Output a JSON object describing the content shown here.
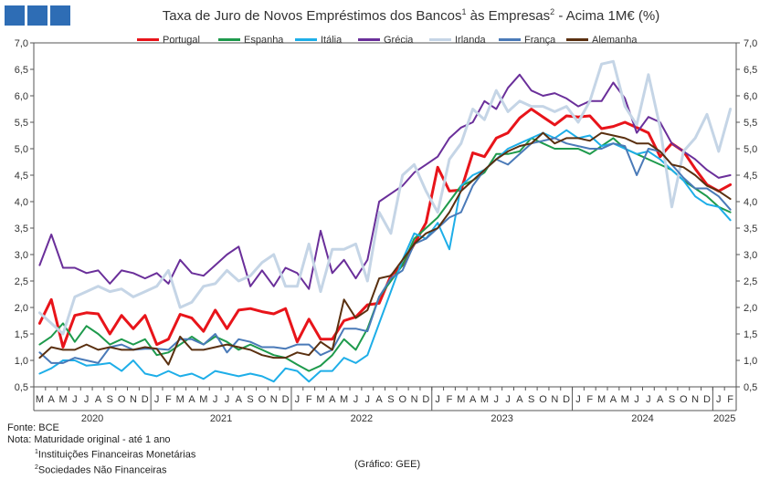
{
  "header": {
    "logo_squares": 3
  },
  "chart_data": {
    "type": "line",
    "title_main": "Taxa de Juro de Novos Empréstimos dos Bancos",
    "title_sup1": "1",
    "title_mid": " às Empresas",
    "title_sup2": "2",
    "title_tail": " - Acima 1M€ (%)",
    "ylim": [
      0.5,
      7.0
    ],
    "yticks": [
      "0,5",
      "1,0",
      "1,5",
      "2,0",
      "2,5",
      "3,0",
      "3,5",
      "4,0",
      "4,5",
      "5,0",
      "5,5",
      "6,0",
      "6,5",
      "7,0"
    ],
    "grid": "none",
    "legend_position": "top",
    "month_labels": [
      "M",
      "A",
      "M",
      "J",
      "J",
      "A",
      "S",
      "O",
      "N",
      "D",
      "J",
      "F",
      "M",
      "A",
      "M",
      "J",
      "J",
      "A",
      "S",
      "O",
      "N",
      "D",
      "J",
      "F",
      "M",
      "A",
      "M",
      "J",
      "J",
      "A",
      "S",
      "O",
      "N",
      "D",
      "J",
      "F",
      "M",
      "A",
      "M",
      "J",
      "J",
      "A",
      "S",
      "O",
      "N",
      "D",
      "J",
      "F",
      "M",
      "A",
      "M",
      "J",
      "J",
      "A",
      "S",
      "O",
      "N",
      "D",
      "J",
      "F"
    ],
    "year_labels": [
      {
        "label": "2020",
        "start": 0,
        "end": 9
      },
      {
        "label": "2021",
        "start": 10,
        "end": 21
      },
      {
        "label": "2022",
        "start": 22,
        "end": 33
      },
      {
        "label": "2023",
        "start": 34,
        "end": 45
      },
      {
        "label": "2024",
        "start": 46,
        "end": 57
      },
      {
        "label": "2025",
        "start": 58,
        "end": 59
      }
    ],
    "series": [
      {
        "name": "Portugal",
        "color": "#e8141a",
        "width": 3,
        "values": [
          1.7,
          2.15,
          1.25,
          1.85,
          1.9,
          1.88,
          1.5,
          1.85,
          1.6,
          1.85,
          1.3,
          1.4,
          1.87,
          1.8,
          1.55,
          1.95,
          1.6,
          1.95,
          1.98,
          1.92,
          1.88,
          1.98,
          1.35,
          1.78,
          1.4,
          1.4,
          1.75,
          1.82,
          2.05,
          2.08,
          2.6,
          2.8,
          3.2,
          3.6,
          4.65,
          4.2,
          4.22,
          4.92,
          4.85,
          5.2,
          5.3,
          5.58,
          5.75,
          5.6,
          5.45,
          5.62,
          5.6,
          5.62,
          5.38,
          5.42,
          5.5,
          5.4,
          5.3,
          4.85,
          5.1,
          4.95,
          4.62,
          4.32,
          4.2,
          4.32
        ]
      },
      {
        "name": "Espanha",
        "color": "#1e9a4c",
        "width": 2,
        "values": [
          1.3,
          1.45,
          1.7,
          1.35,
          1.65,
          1.5,
          1.3,
          1.4,
          1.3,
          1.4,
          1.1,
          1.15,
          1.3,
          1.45,
          1.3,
          1.45,
          1.35,
          1.2,
          1.3,
          1.2,
          1.1,
          1.05,
          0.92,
          0.8,
          0.9,
          1.1,
          1.4,
          1.2,
          1.6,
          2.2,
          2.5,
          2.8,
          3.3,
          3.5,
          3.7,
          4.0,
          4.3,
          4.4,
          4.55,
          4.9,
          4.9,
          4.95,
          5.2,
          5.1,
          5.0,
          5.0,
          5.0,
          4.9,
          5.05,
          5.2,
          5.0,
          4.9,
          4.8,
          4.7,
          4.6,
          4.4,
          4.25,
          4.1,
          3.9,
          3.8
        ]
      },
      {
        "name": "Itália",
        "color": "#1eaee8",
        "width": 2,
        "values": [
          0.75,
          0.85,
          1.0,
          1.0,
          0.9,
          0.92,
          0.95,
          0.8,
          1.0,
          0.75,
          0.7,
          0.8,
          0.7,
          0.75,
          0.65,
          0.8,
          0.75,
          0.7,
          0.75,
          0.7,
          0.6,
          0.85,
          0.8,
          0.6,
          0.8,
          0.8,
          1.05,
          0.95,
          1.1,
          1.7,
          2.3,
          2.9,
          3.4,
          3.3,
          3.6,
          3.1,
          4.3,
          4.5,
          4.6,
          4.8,
          5.0,
          5.1,
          5.2,
          5.3,
          5.2,
          5.35,
          5.2,
          5.25,
          5.05,
          5.1,
          5.0,
          4.9,
          4.95,
          4.8,
          4.6,
          4.4,
          4.1,
          3.95,
          3.9,
          3.65
        ]
      },
      {
        "name": "Grécia",
        "color": "#6a2f9a",
        "width": 2,
        "values": [
          2.8,
          3.38,
          2.75,
          2.75,
          2.65,
          2.7,
          2.45,
          2.7,
          2.65,
          2.55,
          2.65,
          2.45,
          2.9,
          2.65,
          2.6,
          2.8,
          3.0,
          3.15,
          2.4,
          2.7,
          2.4,
          2.75,
          2.65,
          2.35,
          3.45,
          2.65,
          2.9,
          2.55,
          2.9,
          4.0,
          4.15,
          4.3,
          4.55,
          4.7,
          4.85,
          5.2,
          5.4,
          5.5,
          5.9,
          5.75,
          6.15,
          6.4,
          6.1,
          6.0,
          6.05,
          5.95,
          5.8,
          5.9,
          5.9,
          6.25,
          5.95,
          5.3,
          5.6,
          5.5,
          5.1,
          4.95,
          4.8,
          4.6,
          4.45,
          4.5
        ]
      },
      {
        "name": "Irlanda",
        "color": "#c5d5e6",
        "width": 3,
        "values": [
          1.9,
          1.7,
          1.5,
          2.2,
          2.3,
          2.4,
          2.3,
          2.35,
          2.2,
          2.3,
          2.4,
          2.7,
          2.0,
          2.1,
          2.4,
          2.45,
          2.7,
          2.5,
          2.6,
          2.85,
          3.0,
          2.4,
          2.4,
          3.2,
          2.3,
          3.1,
          3.1,
          3.2,
          2.5,
          3.8,
          3.4,
          4.5,
          4.7,
          4.2,
          3.8,
          4.8,
          5.1,
          5.75,
          5.55,
          6.1,
          5.7,
          5.9,
          5.8,
          5.8,
          5.7,
          5.8,
          5.5,
          5.9,
          6.6,
          6.65,
          5.8,
          5.45,
          6.4,
          5.4,
          3.9,
          4.95,
          5.2,
          5.65,
          4.95,
          5.75
        ]
      },
      {
        "name": "França",
        "color": "#4a7ab8",
        "width": 2,
        "values": [
          1.15,
          0.95,
          0.95,
          1.05,
          1.0,
          0.95,
          1.25,
          1.3,
          1.2,
          1.22,
          1.22,
          1.2,
          1.4,
          1.4,
          1.3,
          1.5,
          1.15,
          1.4,
          1.35,
          1.25,
          1.25,
          1.22,
          1.3,
          1.3,
          1.1,
          1.2,
          1.6,
          1.6,
          1.55,
          2.2,
          2.55,
          2.7,
          3.2,
          3.3,
          3.5,
          3.7,
          3.8,
          4.3,
          4.6,
          4.8,
          4.7,
          4.9,
          5.1,
          5.15,
          5.2,
          5.1,
          5.05,
          5.0,
          5.0,
          5.1,
          5.05,
          4.5,
          5.0,
          4.95,
          4.7,
          4.45,
          4.25,
          4.25,
          4.1,
          3.85
        ]
      },
      {
        "name": "Alemanha",
        "color": "#5a3010",
        "width": 2,
        "values": [
          1.05,
          1.25,
          1.2,
          1.2,
          1.3,
          1.2,
          1.25,
          1.2,
          1.2,
          1.25,
          1.22,
          0.92,
          1.45,
          1.2,
          1.2,
          1.25,
          1.3,
          1.25,
          1.2,
          1.1,
          1.05,
          1.05,
          1.15,
          1.1,
          1.35,
          1.2,
          2.15,
          1.8,
          1.95,
          2.55,
          2.6,
          2.9,
          3.2,
          3.4,
          3.5,
          3.8,
          4.2,
          4.4,
          4.6,
          4.8,
          4.95,
          5.05,
          5.1,
          5.3,
          5.1,
          5.2,
          5.2,
          5.15,
          5.3,
          5.25,
          5.2,
          5.1,
          5.1,
          4.95,
          4.7,
          4.65,
          4.5,
          4.3,
          4.2,
          4.05
        ]
      }
    ]
  },
  "notes": {
    "fonte": "Fonte: BCE",
    "nota": "Nota: Maturidade original - até 1 ano",
    "n1_sup": "1",
    "n1_text": "Instituições Financeiras Monetárias",
    "n2_sup": "2",
    "n2_text": "Sociedades Não Financeiras",
    "credit": "(Gráfico: GEE)"
  }
}
